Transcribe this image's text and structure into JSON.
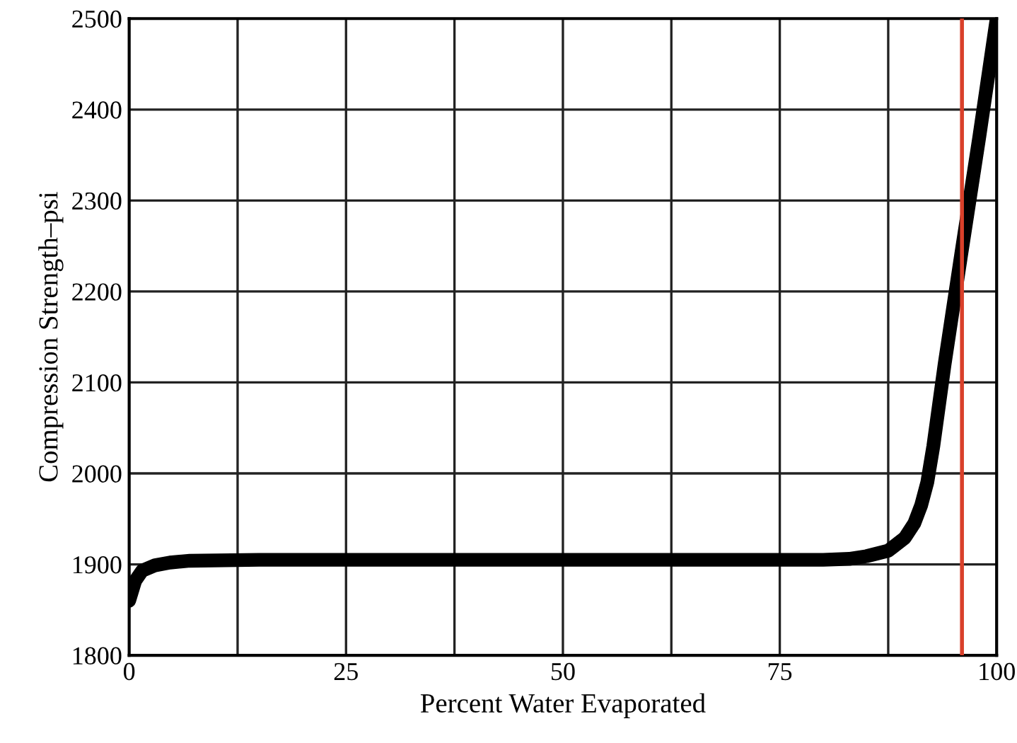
{
  "chart_data": {
    "type": "line",
    "xlabel": "Percent Water Evaporated",
    "ylabel": "Compression Strength–psi",
    "x": [
      0,
      0.7,
      1.5,
      3,
      4.7,
      7,
      15,
      30,
      50,
      70,
      80,
      83,
      85,
      87.5,
      89.4,
      90.5,
      91.3,
      92,
      92.7,
      94,
      95.9,
      98,
      100
    ],
    "series": [
      {
        "color": "#000000",
        "values": [
          1860,
          1882,
          1893,
          1899,
          1902,
          1904,
          1905,
          1905,
          1905,
          1905,
          1905,
          1906,
          1909,
          1915,
          1929,
          1945,
          1965,
          1990,
          2030,
          2120,
          2240,
          2370,
          2500
        ]
      }
    ],
    "xlim": [
      0,
      100
    ],
    "ylim": [
      1800,
      2500
    ],
    "xticks": [
      0,
      {
        "value": 12.5,
        "label": null
      },
      25,
      {
        "value": 37.5,
        "label": null
      },
      50,
      {
        "value": 62.5,
        "label": null
      },
      75,
      {
        "value": 87.5,
        "label": null
      },
      100
    ],
    "yticks": [
      1800,
      1900,
      2000,
      2100,
      2200,
      2300,
      2400,
      2500
    ],
    "grid": true,
    "legend": false,
    "marker": "none",
    "line_style": "solid",
    "ref_lines": [
      {
        "axis": "x",
        "value": 96,
        "label": null,
        "color": "#d9402a"
      }
    ]
  }
}
